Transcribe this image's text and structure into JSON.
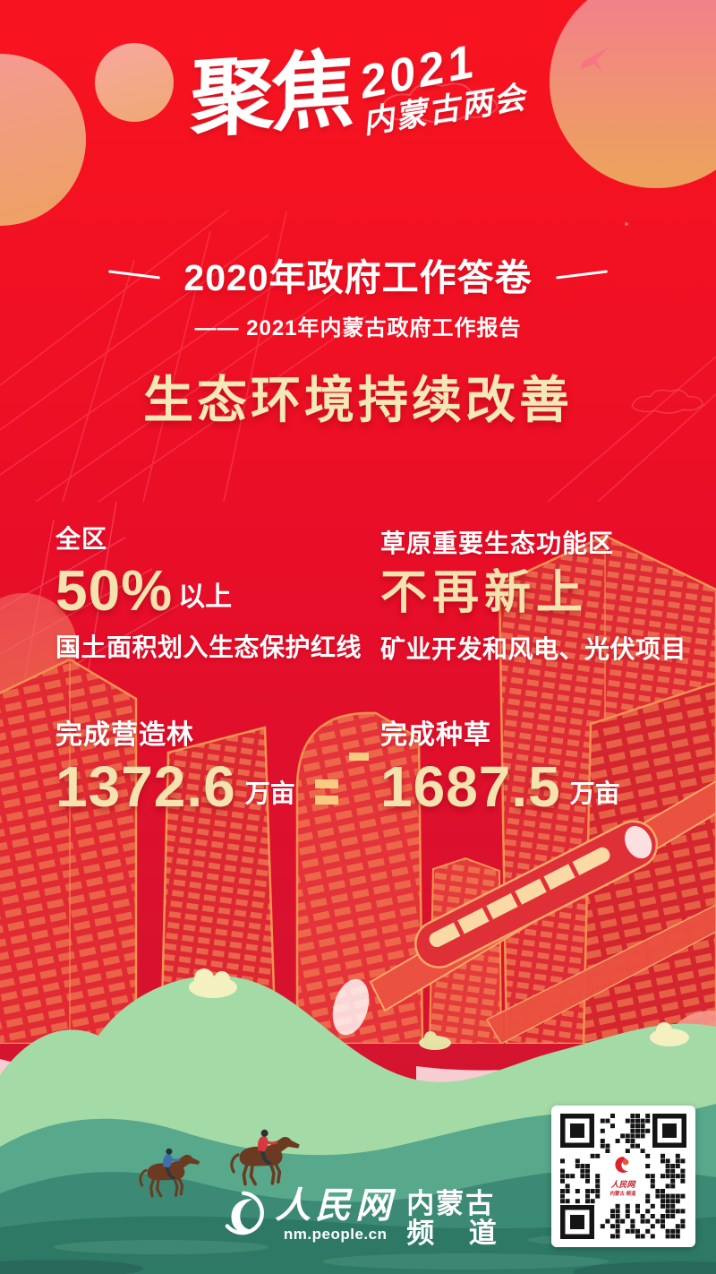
{
  "brand": {
    "focus": "聚焦",
    "year": "2021",
    "event": "内蒙古两会"
  },
  "header": {
    "title": "2020年政府工作答卷",
    "subtitle": "—— 2021年内蒙古政府工作报告",
    "section_title": "生态环境持续改善"
  },
  "stats": {
    "red_line": {
      "prefix": "全区",
      "value": "50%",
      "suffix": "以上",
      "desc": "国土面积划入生态保护红线"
    },
    "grassland": {
      "prefix": "草原重要生态功能区",
      "value": "不再新上",
      "desc": "矿业开发和风电、光伏项目"
    },
    "afforestation": {
      "label": "完成营造林",
      "value": "1372.6",
      "unit": "万亩"
    },
    "grass_seeding": {
      "label": "完成种草",
      "value": "1687.5",
      "unit": "万亩"
    }
  },
  "footer": {
    "site_name": "人民网",
    "site_url": "nm.people.cn",
    "channel_line1": "内蒙古",
    "channel_line2": "频 道"
  },
  "qr": {
    "center_line1": "人民网",
    "center_line2": "内蒙古 频道"
  },
  "colors": {
    "background_red": "#ee0f26",
    "accent_gold": "#f4e3ae",
    "text_white": "#ffffff",
    "city_outline_orange": "#f2914f",
    "hill_light_green": "#a3daa6",
    "hill_teal": "#58a88c",
    "ground_dark_teal": "#2e7866",
    "ribbon_pink": "#f7cdd4"
  }
}
